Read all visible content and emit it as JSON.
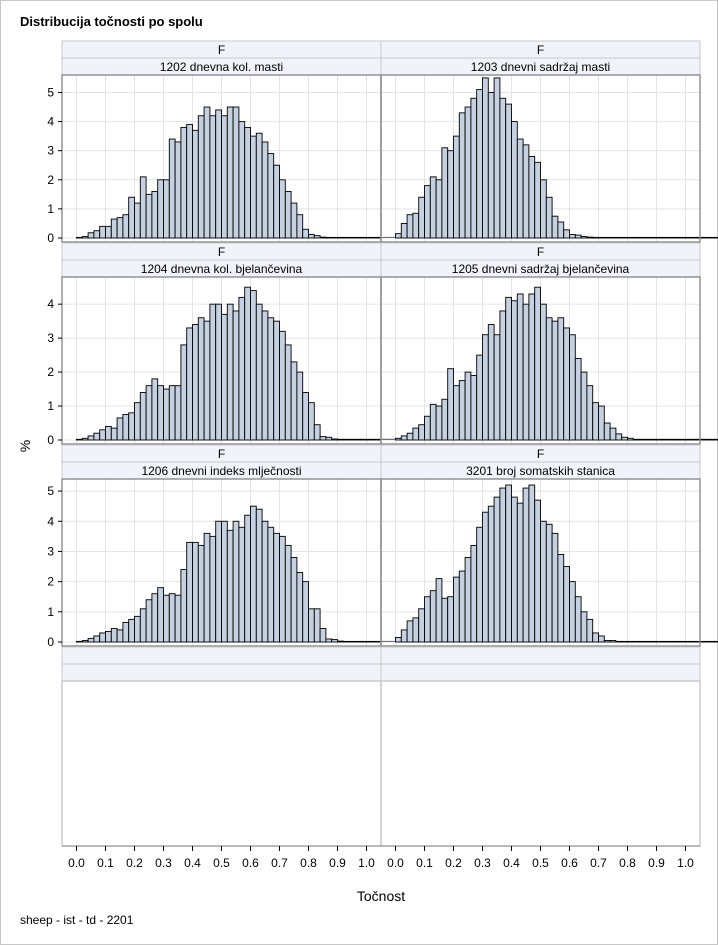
{
  "title": "Distribucija točnosti po spolu",
  "footer": "sheep - ist - td - 2201",
  "chart_data": {
    "type": "bar",
    "subtype": "histogram-panel-grid",
    "xlabel": "Točnost",
    "ylabel": "%",
    "xlim": [
      -0.05,
      1.05
    ],
    "xticks": [
      "0.0",
      "0.1",
      "0.2",
      "0.3",
      "0.4",
      "0.5",
      "0.6",
      "0.7",
      "0.8",
      "0.9",
      "1.0"
    ],
    "bin_width": 0.02,
    "bin_start": 0.0,
    "columns": 2,
    "empty_row": true,
    "panels": [
      {
        "sex": "F",
        "name": "1202 dnevna kol. masti",
        "ylim": [
          0,
          5.6
        ],
        "yticks": [
          0,
          1,
          2,
          3,
          4,
          5
        ],
        "values": [
          0.02,
          0.05,
          0.18,
          0.25,
          0.4,
          0.4,
          0.65,
          0.7,
          0.8,
          1.4,
          1.2,
          2.1,
          1.5,
          1.6,
          2.0,
          2.0,
          3.4,
          3.3,
          3.8,
          3.9,
          3.7,
          4.2,
          4.5,
          4.2,
          4.4,
          4.2,
          4.5,
          4.5,
          4.0,
          3.8,
          3.5,
          3.6,
          3.3,
          2.9,
          2.5,
          2.0,
          1.6,
          1.2,
          0.8,
          0.3,
          0.12,
          0.08,
          0.03,
          0.02,
          0.02,
          0.02,
          0.02,
          0.02,
          0.02,
          0.02,
          0.02,
          0.02,
          0.02,
          0.02,
          0.02,
          0.01,
          0.01,
          0.01,
          0.01,
          0.01,
          0.01,
          0.01,
          0.01,
          0.01,
          0.01,
          0.01,
          0.01,
          0.01,
          0.01,
          0.01,
          0.01,
          0.01,
          0.01,
          0.01,
          0.01
        ]
      },
      {
        "sex": "F",
        "name": "1203 dnevni sadržaj masti",
        "ylim": [
          0,
          5.6
        ],
        "yticks": [
          0,
          1,
          2,
          3,
          4,
          5
        ],
        "values": [
          0.15,
          0.5,
          0.8,
          0.85,
          1.4,
          1.8,
          2.1,
          2.0,
          3.1,
          3.0,
          3.5,
          4.3,
          4.5,
          4.8,
          5.1,
          5.5,
          5.0,
          5.5,
          4.8,
          4.6,
          4.0,
          3.4,
          3.2,
          2.8,
          2.6,
          2.0,
          1.4,
          0.75,
          0.55,
          0.28,
          0.12,
          0.1,
          0.05,
          0.03,
          0.02,
          0.02,
          0.02,
          0.02,
          0.02,
          0.02,
          0.02,
          0.02,
          0.02,
          0.02,
          0.02,
          0.02,
          0.02,
          0.02,
          0.02,
          0.02,
          0.02,
          0.02,
          0.02,
          0.02,
          0.02,
          0.01,
          0.01
        ]
      },
      {
        "sex": "F",
        "name": "1204 dnevna kol. bjelančevina",
        "ylim": [
          0,
          4.8
        ],
        "yticks": [
          0,
          1,
          2,
          3,
          4
        ],
        "values": [
          0.02,
          0.05,
          0.12,
          0.2,
          0.3,
          0.4,
          0.35,
          0.65,
          0.75,
          0.8,
          1.1,
          1.4,
          1.6,
          1.8,
          1.6,
          1.5,
          1.6,
          1.6,
          2.8,
          3.3,
          3.4,
          3.6,
          3.5,
          4.0,
          4.0,
          3.7,
          4.0,
          3.8,
          4.2,
          4.5,
          4.4,
          4.0,
          3.8,
          3.6,
          3.5,
          3.2,
          2.8,
          2.3,
          2.0,
          1.4,
          1.1,
          0.45,
          0.1,
          0.08,
          0.03,
          0.02,
          0.02,
          0.02,
          0.02,
          0.02,
          0.02,
          0.02,
          0.02,
          0.02,
          0.02,
          0.02,
          0.02,
          0.01,
          0.01,
          0.01,
          0.01,
          0.01,
          0.01,
          0.01,
          0.01,
          0.01,
          0.01,
          0.01,
          0.01
        ]
      },
      {
        "sex": "F",
        "name": "1205 dnevni sadržaj bjelančevina",
        "ylim": [
          0,
          4.8
        ],
        "yticks": [
          0,
          1,
          2,
          3,
          4
        ],
        "values": [
          0.05,
          0.12,
          0.2,
          0.35,
          0.45,
          0.7,
          1.05,
          1.0,
          1.2,
          2.1,
          1.6,
          1.75,
          2.0,
          1.9,
          2.5,
          3.1,
          3.4,
          3.1,
          3.8,
          4.2,
          4.1,
          4.3,
          4.0,
          4.3,
          4.5,
          4.0,
          3.6,
          3.5,
          3.6,
          3.3,
          3.1,
          2.4,
          2.0,
          1.6,
          1.1,
          1.0,
          0.5,
          0.35,
          0.18,
          0.08,
          0.05,
          0.02,
          0.02,
          0.02,
          0.02,
          0.02,
          0.02,
          0.02,
          0.02,
          0.02,
          0.02,
          0.02,
          0.02,
          0.02,
          0.02,
          0.02,
          0.01,
          0.01,
          0.01,
          0.01,
          0.01,
          0.01,
          0.01
        ]
      },
      {
        "sex": "F",
        "name": "1206 dnevni indeks mlječnosti",
        "ylim": [
          0,
          5.4
        ],
        "yticks": [
          0,
          1,
          2,
          3,
          4,
          5
        ],
        "values": [
          0.02,
          0.05,
          0.12,
          0.2,
          0.3,
          0.35,
          0.45,
          0.4,
          0.65,
          0.75,
          0.85,
          1.1,
          1.4,
          1.6,
          1.8,
          1.55,
          1.6,
          1.55,
          2.4,
          3.3,
          3.3,
          3.2,
          3.6,
          3.5,
          4.0,
          4.0,
          3.7,
          4.0,
          3.8,
          4.2,
          4.5,
          4.4,
          4.0,
          3.8,
          3.6,
          3.5,
          3.2,
          2.8,
          2.3,
          2.0,
          1.1,
          1.1,
          0.45,
          0.1,
          0.08,
          0.03,
          0.02,
          0.02,
          0.02,
          0.02,
          0.02,
          0.02,
          0.02,
          0.02,
          0.02,
          0.02,
          0.02,
          0.01,
          0.01,
          0.01,
          0.01,
          0.01,
          0.01,
          0.01,
          0.01,
          0.01,
          0.01,
          0.01,
          0.01
        ]
      },
      {
        "sex": "F",
        "name": "3201 broj somatskih stanica",
        "ylim": [
          0,
          5.4
        ],
        "yticks": [
          0,
          1,
          2,
          3,
          4,
          5
        ],
        "values": [
          0.15,
          0.4,
          0.7,
          0.8,
          1.1,
          1.5,
          1.7,
          2.1,
          1.45,
          1.5,
          2.15,
          2.35,
          2.8,
          3.2,
          3.8,
          4.3,
          4.5,
          4.8,
          5.1,
          5.2,
          4.8,
          4.6,
          5.1,
          5.2,
          4.7,
          4.0,
          3.9,
          3.6,
          2.9,
          2.5,
          2.0,
          1.5,
          1.0,
          0.75,
          0.3,
          0.2,
          0.05,
          0.05,
          0.02,
          0.02,
          0.02,
          0.02,
          0.02,
          0.02,
          0.02,
          0.02,
          0.02,
          0.02,
          0.02,
          0.02,
          0.02,
          0.02,
          0.02,
          0.02,
          0.02,
          0.02,
          0.01,
          0.01,
          0.01,
          0.01,
          0.01,
          0.01,
          0.01
        ]
      }
    ],
    "colors": {
      "bar_fill": "#c5d0e0",
      "bar_stroke": "#000000",
      "grid": "#e4e4e4",
      "header_fill": "#f0f3f9",
      "frame": "#8c8c8c"
    }
  }
}
